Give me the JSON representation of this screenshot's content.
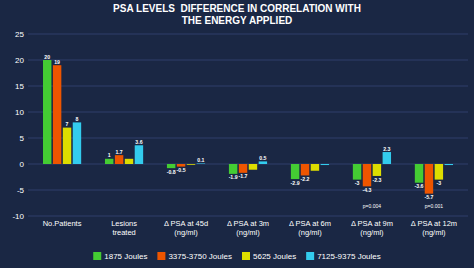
{
  "chart_data": {
    "type": "bar",
    "title": "PSA LEVELS  DIFFERENCE IN CORRELATION WITH\nTHE ENERGY APPLIED",
    "categories": [
      "No.Patients",
      "Lesions\ntreated",
      "Δ PSA at 45d\n(ng/ml)",
      "Δ PSA at 3m\n(ng/ml)",
      "Δ PSA at 6m\n(ng/ml)",
      "Δ PSA at 9m\n(ng/ml)",
      "Δ PSA at 12m\n(ng/ml)"
    ],
    "series": [
      {
        "name": "1875 Joules",
        "color": "#44cc33",
        "values": [
          20,
          1.0,
          -0.8,
          -1.9,
          -2.9,
          -3.0,
          -3.6
        ],
        "value_labels": [
          "20",
          "1",
          "-0.8",
          "-1.9",
          "-2.9",
          "-3",
          "-3.6"
        ]
      },
      {
        "name": "3375-3750 Joules",
        "color": "#ee5500",
        "values": [
          19,
          1.7,
          -0.5,
          -1.7,
          -2.2,
          -4.3,
          -5.7
        ],
        "value_labels": [
          "19",
          "1.7",
          "-0.5",
          "-1.7",
          "-2.2",
          "-4.3",
          "-5.7"
        ]
      },
      {
        "name": "5625 Joules",
        "color": "#dddd00",
        "values": [
          7,
          1.0,
          -0.15,
          -1.1,
          -1.3,
          -2.3,
          -3.0
        ],
        "value_labels": [
          "7",
          null,
          null,
          null,
          null,
          "-2.3",
          "-3"
        ]
      },
      {
        "name": "7125-9375 Joules",
        "color": "#33ccee",
        "values": [
          8,
          3.6,
          0.1,
          0.5,
          -0.2,
          2.3,
          -0.2
        ],
        "value_labels": [
          "8",
          "3.6",
          "0.1",
          "0.5",
          null,
          "2.3",
          null
        ]
      }
    ],
    "annotations": [
      {
        "text": "p=0.004",
        "category": "Δ PSA at 9m\n(ng/ml)",
        "y": -7.8
      },
      {
        "text": "p=0.001",
        "category": "Δ PSA at 12m\n(ng/ml)",
        "y": -7.8
      }
    ],
    "ylim": [
      -10,
      25
    ],
    "yticks": [
      -10,
      -5,
      0,
      5,
      10,
      15,
      20,
      25
    ],
    "grid": true,
    "legend": "bottom",
    "data_labels": true
  }
}
